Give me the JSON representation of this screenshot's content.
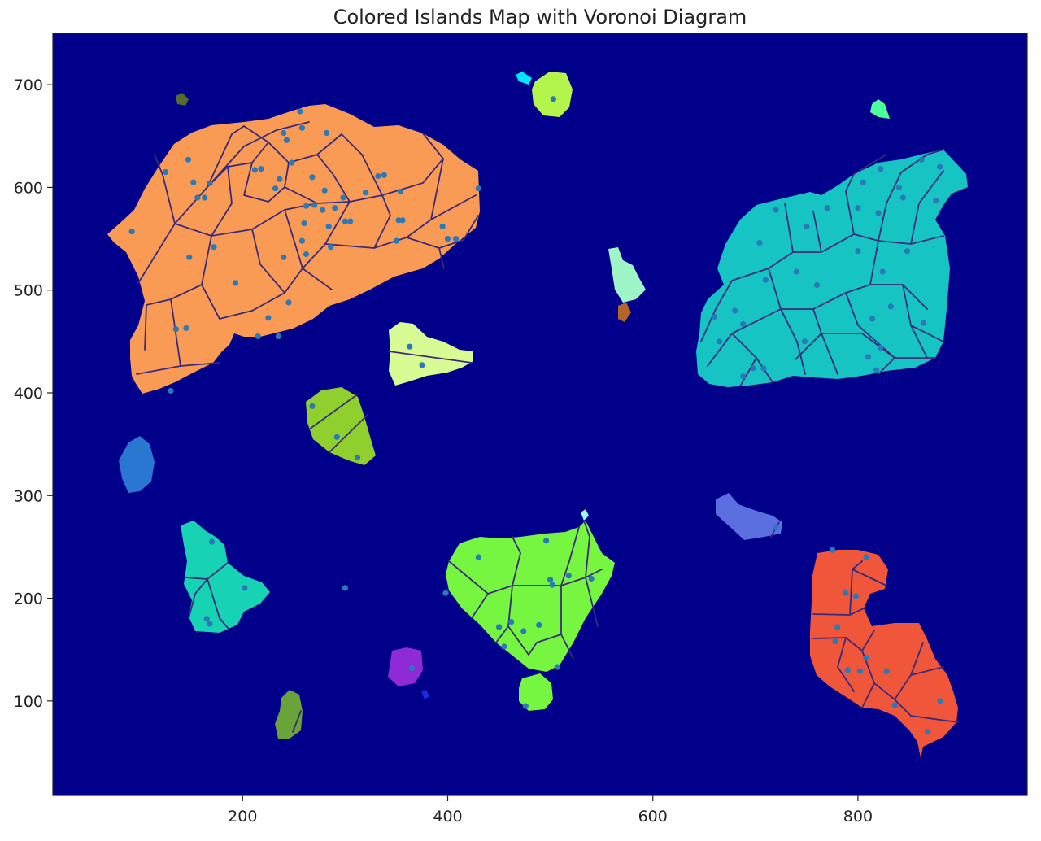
{
  "chart_data": {
    "type": "scatter",
    "title": "Colored Islands Map with Voronoi Diagram",
    "xlabel": "",
    "ylabel": "",
    "xlim": [
      15,
      965
    ],
    "ylim": [
      8,
      750
    ],
    "xticks": [
      200,
      400,
      600,
      800
    ],
    "yticks": [
      100,
      200,
      300,
      400,
      500,
      600,
      700
    ],
    "grid": false,
    "background_color": "#00008b",
    "point_color": "#2a7ab8",
    "edge_color": "#3b2a7a",
    "series": [
      {
        "values": [
          [
            92,
            557
          ],
          [
            125,
            615
          ],
          [
            147,
            627
          ],
          [
            152,
            605
          ],
          [
            156,
            590
          ],
          [
            163,
            590
          ],
          [
            168,
            604
          ],
          [
            148,
            532
          ],
          [
            172,
            542
          ],
          [
            193,
            507
          ],
          [
            212,
            617
          ],
          [
            218,
            618
          ],
          [
            232,
            599
          ],
          [
            240,
            653
          ],
          [
            243,
            646
          ],
          [
            248,
            624
          ],
          [
            236,
            608
          ],
          [
            256,
            674
          ],
          [
            258,
            658
          ],
          [
            262,
            582
          ],
          [
            260,
            565
          ],
          [
            268,
            610
          ],
          [
            270,
            583
          ],
          [
            278,
            578
          ],
          [
            280,
            597
          ],
          [
            284,
            562
          ],
          [
            286,
            542
          ],
          [
            290,
            580
          ],
          [
            298,
            590
          ],
          [
            300,
            567
          ],
          [
            240,
            532
          ],
          [
            245,
            488
          ],
          [
            225,
            473
          ],
          [
            215,
            455
          ],
          [
            235,
            455
          ],
          [
            258,
            548
          ],
          [
            262,
            535
          ],
          [
            145,
            463
          ],
          [
            135,
            462
          ],
          [
            130,
            402
          ],
          [
            282,
            653
          ],
          [
            305,
            567
          ],
          [
            320,
            595
          ],
          [
            332,
            611
          ],
          [
            338,
            612
          ],
          [
            352,
            568
          ],
          [
            356,
            568
          ],
          [
            350,
            548
          ],
          [
            354,
            596
          ],
          [
            395,
            562
          ],
          [
            400,
            550
          ],
          [
            408,
            550
          ],
          [
            430,
            599
          ],
          [
            363,
            445
          ],
          [
            375,
            427
          ],
          [
            268,
            387
          ],
          [
            292,
            357
          ],
          [
            312,
            337
          ],
          [
            100,
            345
          ],
          [
            170,
            255
          ],
          [
            202,
            210
          ],
          [
            165,
            180
          ],
          [
            168,
            175
          ],
          [
            300,
            210
          ],
          [
            430,
            240
          ],
          [
            398,
            205
          ],
          [
            496,
            256
          ],
          [
            518,
            222
          ],
          [
            540,
            219
          ],
          [
            502,
            213
          ],
          [
            500,
            218
          ],
          [
            462,
            177
          ],
          [
            450,
            172
          ],
          [
            455,
            153
          ],
          [
            474,
            168
          ],
          [
            489,
            174
          ],
          [
            507,
            133
          ],
          [
            365,
            132
          ],
          [
            476,
            95
          ],
          [
            660,
            474
          ],
          [
            665,
            450
          ],
          [
            680,
            480
          ],
          [
            688,
            467
          ],
          [
            688,
            416
          ],
          [
            698,
            424
          ],
          [
            708,
            424
          ],
          [
            710,
            510
          ],
          [
            704,
            546
          ],
          [
            720,
            578
          ],
          [
            750,
            562
          ],
          [
            740,
            518
          ],
          [
            760,
            505
          ],
          [
            748,
            450
          ],
          [
            770,
            580
          ],
          [
            800,
            580
          ],
          [
            800,
            538
          ],
          [
            820,
            575
          ],
          [
            824,
            518
          ],
          [
            832,
            484
          ],
          [
            814,
            472
          ],
          [
            822,
            444
          ],
          [
            810,
            435
          ],
          [
            818,
            422
          ],
          [
            864,
            468
          ],
          [
            848,
            538
          ],
          [
            805,
            605
          ],
          [
            822,
            618
          ],
          [
            840,
            600
          ],
          [
            844,
            590
          ],
          [
            862,
            627
          ],
          [
            880,
            620
          ],
          [
            876,
            587
          ],
          [
            775,
            247
          ],
          [
            808,
            240
          ],
          [
            788,
            205
          ],
          [
            798,
            202
          ],
          [
            780,
            172
          ],
          [
            778,
            158
          ],
          [
            808,
            142
          ],
          [
            790,
            130
          ],
          [
            802,
            129
          ],
          [
            828,
            129
          ],
          [
            836,
            96
          ],
          [
            868,
            70
          ],
          [
            880,
            100
          ],
          [
            720,
            269
          ],
          [
            503,
            686
          ]
        ]
      }
    ]
  }
}
